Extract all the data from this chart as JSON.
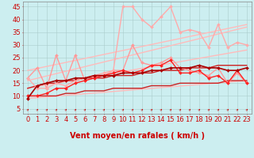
{
  "background_color": "#cceef0",
  "grid_color": "#aacccc",
  "xlabel": "Vent moyen/en rafales ( km/h )",
  "xlim": [
    -0.5,
    23.5
  ],
  "ylim": [
    3,
    47
  ],
  "yticks": [
    5,
    10,
    15,
    20,
    25,
    30,
    35,
    40,
    45
  ],
  "xticks": [
    0,
    1,
    2,
    3,
    4,
    5,
    6,
    7,
    8,
    9,
    10,
    11,
    12,
    13,
    14,
    15,
    16,
    17,
    18,
    19,
    20,
    21,
    22,
    23
  ],
  "lines": [
    {
      "x": [
        0,
        1,
        2,
        3,
        4,
        5,
        6,
        7,
        8,
        9,
        10,
        11,
        12,
        13,
        14,
        15,
        16,
        17,
        18,
        19,
        20,
        21,
        22,
        23
      ],
      "y": [
        17,
        21,
        13,
        26,
        16,
        26,
        16,
        17,
        18,
        20,
        20,
        30,
        23,
        22,
        23,
        25,
        21,
        20,
        19,
        18,
        21,
        15,
        19,
        15
      ],
      "color": "#ff9999",
      "lw": 1.0,
      "marker": "D",
      "ms": 2.0,
      "zorder": 4
    },
    {
      "x": [
        0,
        1,
        2,
        3,
        4,
        5,
        6,
        7,
        8,
        9,
        10,
        11,
        12,
        13,
        14,
        15,
        16,
        17,
        18,
        19,
        20,
        21,
        22,
        23
      ],
      "y": [
        17,
        13,
        13,
        15,
        14,
        16,
        17,
        18,
        19,
        20,
        45,
        45,
        40,
        37,
        41,
        45,
        35,
        36,
        35,
        29,
        38,
        29,
        31,
        30
      ],
      "color": "#ffaaaa",
      "lw": 1.0,
      "marker": "D",
      "ms": 2.0,
      "zorder": 4
    },
    {
      "x": [
        0,
        23
      ],
      "y": [
        9,
        16
      ],
      "color": "#ffbbbb",
      "lw": 1.0,
      "marker": null,
      "ms": 0,
      "zorder": 2
    },
    {
      "x": [
        0,
        23
      ],
      "y": [
        20,
        38
      ],
      "color": "#ffbbbb",
      "lw": 1.0,
      "marker": null,
      "ms": 0,
      "zorder": 2
    },
    {
      "x": [
        0,
        23
      ],
      "y": [
        13,
        28
      ],
      "color": "#ffbbbb",
      "lw": 1.0,
      "marker": null,
      "ms": 0,
      "zorder": 2
    },
    {
      "x": [
        0,
        23
      ],
      "y": [
        16,
        37
      ],
      "color": "#ffbbbb",
      "lw": 1.0,
      "marker": null,
      "ms": 0,
      "zorder": 2
    },
    {
      "x": [
        0,
        1,
        2,
        3,
        4,
        5,
        6,
        7,
        8,
        9,
        10,
        11,
        12,
        13,
        14,
        15,
        16,
        17,
        18,
        19,
        20,
        21,
        22,
        23
      ],
      "y": [
        10,
        10,
        10,
        10,
        11,
        11,
        12,
        12,
        12,
        13,
        13,
        13,
        13,
        14,
        14,
        14,
        15,
        15,
        15,
        15,
        15,
        16,
        16,
        16
      ],
      "color": "#cc2222",
      "lw": 1.0,
      "marker": null,
      "ms": 0,
      "zorder": 3
    },
    {
      "x": [
        0,
        1,
        2,
        3,
        4,
        5,
        6,
        7,
        8,
        9,
        10,
        11,
        12,
        13,
        14,
        15,
        16,
        17,
        18,
        19,
        20,
        21,
        22,
        23
      ],
      "y": [
        13,
        14,
        15,
        15,
        16,
        16,
        17,
        17,
        17,
        18,
        18,
        18,
        19,
        19,
        20,
        20,
        20,
        21,
        21,
        21,
        22,
        22,
        22,
        22
      ],
      "color": "#cc2222",
      "lw": 1.0,
      "marker": null,
      "ms": 0,
      "zorder": 3
    },
    {
      "x": [
        0,
        1,
        2,
        3,
        4,
        5,
        6,
        7,
        8,
        9,
        10,
        11,
        12,
        13,
        14,
        15,
        16,
        17,
        18,
        19,
        20,
        21,
        22,
        23
      ],
      "y": [
        10,
        10,
        11,
        13,
        13,
        15,
        16,
        17,
        18,
        19,
        20,
        19,
        20,
        22,
        22,
        24,
        19,
        19,
        20,
        17,
        18,
        15,
        20,
        15
      ],
      "color": "#ff2222",
      "lw": 1.0,
      "marker": "D",
      "ms": 2.0,
      "zorder": 5
    },
    {
      "x": [
        0,
        1,
        2,
        3,
        4,
        5,
        6,
        7,
        8,
        9,
        10,
        11,
        12,
        13,
        14,
        15,
        16,
        17,
        18,
        19,
        20,
        21,
        22,
        23
      ],
      "y": [
        9,
        14,
        15,
        16,
        16,
        17,
        17,
        18,
        18,
        18,
        19,
        19,
        19,
        20,
        20,
        21,
        21,
        21,
        22,
        21,
        21,
        20,
        20,
        21
      ],
      "color": "#aa0000",
      "lw": 1.2,
      "marker": "D",
      "ms": 2.0,
      "zorder": 5
    }
  ],
  "xlabel_color": "#cc0000",
  "xlabel_fontsize": 7,
  "xlabel_fontweight": "bold",
  "tick_fontsize": 6,
  "tick_color": "#cc0000"
}
